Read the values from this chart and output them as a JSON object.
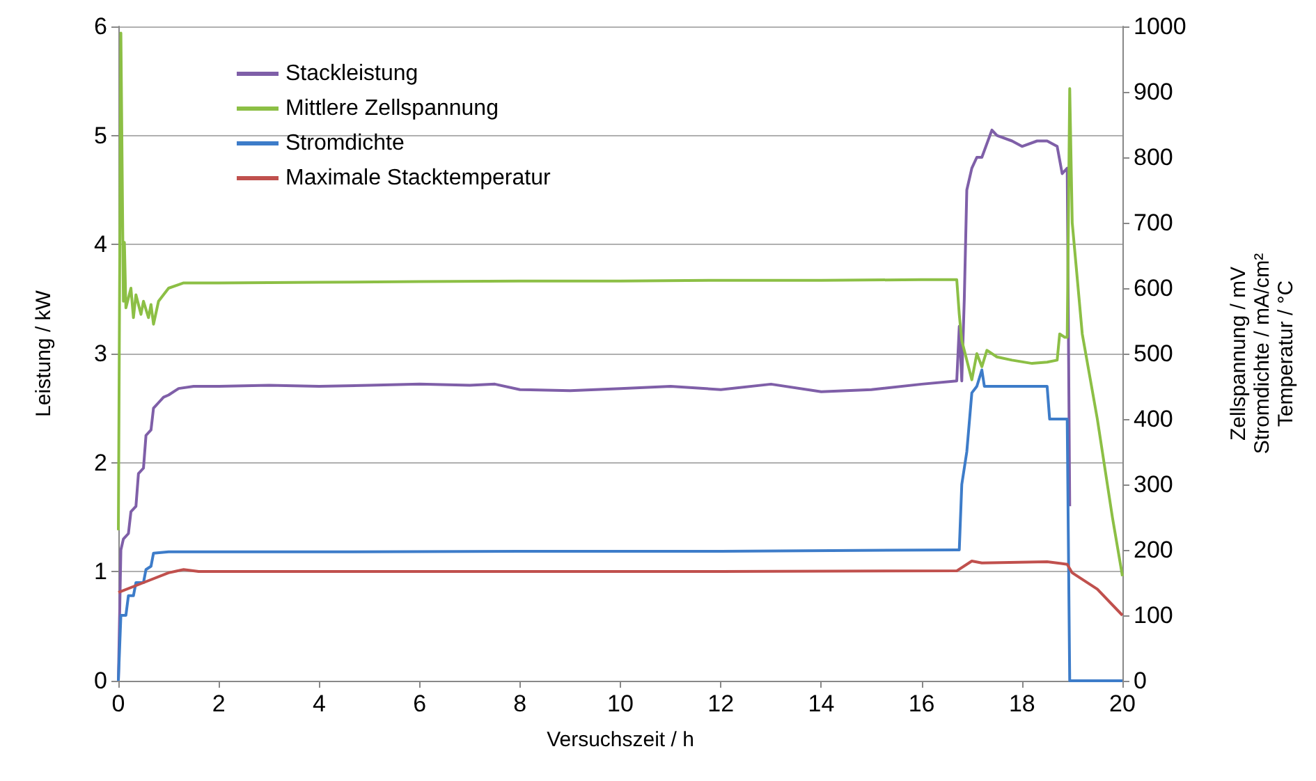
{
  "chart_data": {
    "type": "line",
    "xlabel": "Versuchszeit / h",
    "ylabel": "Leistung / kW",
    "y2label": "Zellspannung / mV\nStromdichte / mA/cm²\nTemperatur / °C",
    "xlim": [
      0,
      20
    ],
    "xticks": [
      0,
      2,
      4,
      6,
      8,
      10,
      12,
      14,
      16,
      18,
      20
    ],
    "ylim": [
      0,
      6
    ],
    "yticks": [
      0,
      1,
      2,
      3,
      4,
      5,
      6
    ],
    "y2lim": [
      0,
      1000
    ],
    "y2ticks": [
      0,
      100,
      200,
      300,
      400,
      500,
      600,
      700,
      800,
      900,
      1000
    ],
    "grid": "y",
    "legend": "top left",
    "marker": "none",
    "line_style": "solid",
    "series": [
      {
        "name": "Stackleistung",
        "color": "#7f5fa8",
        "axis": "y",
        "x": [
          0,
          0.05,
          0.1,
          0.2,
          0.25,
          0.35,
          0.4,
          0.5,
          0.55,
          0.65,
          0.7,
          0.8,
          0.9,
          1.0,
          1.2,
          1.5,
          2,
          3,
          4,
          5,
          6,
          7,
          7.5,
          8,
          9,
          10,
          11,
          12,
          13,
          14,
          15,
          16,
          16.7,
          16.75,
          16.8,
          16.85,
          16.9,
          17.0,
          17.1,
          17.2,
          17.4,
          17.5,
          17.8,
          18,
          18.3,
          18.5,
          18.7,
          18.8,
          18.9,
          18.95
        ],
        "values": [
          0,
          1.2,
          1.3,
          1.35,
          1.55,
          1.6,
          1.9,
          1.95,
          2.25,
          2.3,
          2.5,
          2.55,
          2.6,
          2.62,
          2.68,
          2.7,
          2.7,
          2.71,
          2.7,
          2.71,
          2.72,
          2.71,
          2.72,
          2.67,
          2.66,
          2.68,
          2.7,
          2.67,
          2.72,
          2.65,
          2.67,
          2.72,
          2.75,
          3.25,
          2.75,
          3.5,
          4.5,
          4.7,
          4.8,
          4.8,
          5.05,
          5.0,
          4.95,
          4.9,
          4.95,
          4.95,
          4.9,
          4.65,
          4.7,
          1.6
        ]
      },
      {
        "name": "Mittlere Zellspannung",
        "color": "#8cbf45",
        "axis": "y2",
        "x": [
          0,
          0.05,
          0.1,
          0.12,
          0.15,
          0.25,
          0.3,
          0.35,
          0.45,
          0.5,
          0.6,
          0.65,
          0.7,
          0.8,
          1.0,
          1.3,
          2,
          4,
          6,
          8,
          10,
          12,
          14,
          16,
          16.7,
          16.75,
          16.8,
          16.9,
          17.0,
          17.1,
          17.2,
          17.3,
          17.5,
          17.8,
          18.2,
          18.5,
          18.7,
          18.75,
          18.85,
          18.9,
          18.95,
          19.0,
          19.2,
          19.5,
          19.8,
          20.0
        ],
        "values": [
          230,
          990,
          580,
          670,
          570,
          600,
          555,
          590,
          560,
          580,
          555,
          575,
          545,
          580,
          600,
          608,
          608,
          609,
          610,
          611,
          611,
          612,
          612,
          613,
          613,
          560,
          520,
          490,
          460,
          500,
          480,
          505,
          495,
          490,
          485,
          487,
          490,
          530,
          525,
          525,
          905,
          700,
          530,
          400,
          250,
          160
        ]
      },
      {
        "name": "Stromdichte",
        "color": "#3d7cc9",
        "axis": "y2",
        "x": [
          0,
          0.05,
          0.1,
          0.15,
          0.2,
          0.3,
          0.35,
          0.5,
          0.55,
          0.65,
          0.7,
          1,
          4,
          8,
          12,
          16.7,
          16.75,
          16.8,
          16.9,
          17.0,
          17.1,
          17.2,
          17.25,
          17.3,
          18.5,
          18.55,
          18.9,
          18.95,
          20
        ],
        "values": [
          0,
          100,
          100,
          100,
          130,
          130,
          150,
          150,
          170,
          175,
          195,
          197,
          197,
          198,
          198,
          200,
          200,
          300,
          350,
          440,
          450,
          475,
          450,
          450,
          450,
          400,
          400,
          0,
          0
        ]
      },
      {
        "name": "Maximale Stacktemperatur",
        "color": "#c0504d",
        "axis": "y2",
        "x": [
          0,
          0.5,
          1.0,
          1.3,
          1.6,
          4,
          8,
          12,
          16.7,
          17.0,
          17.2,
          18.5,
          18.9,
          19.0,
          19.5,
          20
        ],
        "values": [
          135,
          150,
          165,
          170,
          167,
          167,
          167,
          167,
          168,
          183,
          180,
          182,
          178,
          165,
          140,
          100
        ]
      }
    ]
  }
}
